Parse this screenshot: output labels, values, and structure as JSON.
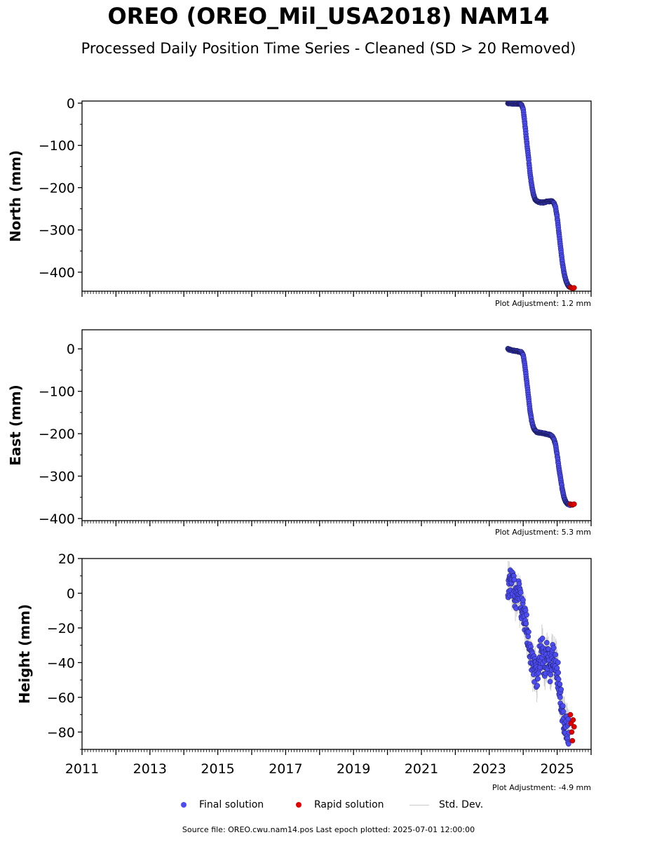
{
  "header": {
    "title": "OREO (OREO_Mil_USA2018) NAM14",
    "subtitle": "Processed Daily Position Time Series - Cleaned (SD > 20 Removed)"
  },
  "legend": {
    "final_label": "Final solution",
    "rapid_label": "Rapid solution",
    "std_label": "Std. Dev."
  },
  "colors": {
    "final": "#4c4cf0",
    "rapid": "#e00000",
    "std": "#cccccc"
  },
  "footer": {
    "source": "Source file: OREO.cwu.nam14.pos  Last epoch plotted: 2025-07-01 12:00:00"
  },
  "chart_data": [
    {
      "type": "scatter",
      "ylabel": "North (mm)",
      "ylim": [
        -445,
        5
      ],
      "yticks": [
        0,
        -100,
        -200,
        -300,
        -400
      ],
      "xlim": [
        2011,
        2026
      ],
      "adjustment": "Plot Adjustment: 1.2 mm",
      "series": [
        {
          "name": "Final solution",
          "x": [
            2023.55,
            2023.6,
            2023.7,
            2023.8,
            2023.9,
            2023.95,
            2024.0,
            2024.05,
            2024.1,
            2024.15,
            2024.2,
            2024.25,
            2024.3,
            2024.35,
            2024.4,
            2024.5,
            2024.6,
            2024.7,
            2024.8,
            2024.85,
            2024.9,
            2024.95,
            2025.0,
            2025.05,
            2025.1,
            2025.15,
            2025.2,
            2025.25,
            2025.3,
            2025.35,
            2025.38
          ],
          "y": [
            0,
            -1,
            -1,
            -1,
            -2,
            -3,
            -15,
            -50,
            -90,
            -125,
            -165,
            -195,
            -215,
            -228,
            -232,
            -235,
            -235,
            -233,
            -232,
            -232,
            -235,
            -245,
            -270,
            -305,
            -340,
            -375,
            -400,
            -418,
            -428,
            -434,
            -436
          ]
        },
        {
          "name": "Rapid solution",
          "x": [
            2025.39,
            2025.42,
            2025.45,
            2025.47,
            2025.5
          ],
          "y": [
            -436,
            -437,
            -438,
            -438,
            -437
          ]
        }
      ]
    },
    {
      "type": "scatter",
      "ylabel": "East (mm)",
      "ylim": [
        -405,
        45
      ],
      "yticks": [
        0,
        -100,
        -200,
        -300,
        -400
      ],
      "xlim": [
        2011,
        2026
      ],
      "adjustment": "Plot Adjustment: 5.3 mm",
      "series": [
        {
          "name": "Final solution",
          "x": [
            2023.55,
            2023.6,
            2023.7,
            2023.8,
            2023.9,
            2023.95,
            2024.0,
            2024.05,
            2024.1,
            2024.15,
            2024.2,
            2024.25,
            2024.3,
            2024.35,
            2024.4,
            2024.5,
            2024.6,
            2024.7,
            2024.8,
            2024.85,
            2024.9,
            2024.95,
            2025.0,
            2025.05,
            2025.1,
            2025.15,
            2025.2,
            2025.25,
            2025.3,
            2025.35,
            2025.38
          ],
          "y": [
            0,
            -2,
            -4,
            -5,
            -7,
            -8,
            -15,
            -40,
            -75,
            -110,
            -145,
            -170,
            -185,
            -193,
            -196,
            -198,
            -199,
            -201,
            -203,
            -206,
            -212,
            -225,
            -250,
            -280,
            -305,
            -330,
            -350,
            -360,
            -365,
            -367,
            -368
          ]
        },
        {
          "name": "Rapid solution",
          "x": [
            2025.39,
            2025.42,
            2025.45,
            2025.47,
            2025.5
          ],
          "y": [
            -366,
            -367,
            -368,
            -367,
            -366
          ]
        }
      ]
    },
    {
      "type": "scatter",
      "ylabel": "Height (mm)",
      "ylim": [
        -90,
        20
      ],
      "yticks": [
        20,
        0,
        -20,
        -40,
        -60,
        -80
      ],
      "xlim": [
        2011,
        2026
      ],
      "xticks": [
        2011,
        2013,
        2015,
        2017,
        2019,
        2021,
        2023,
        2025
      ],
      "adjustment": "Plot Adjustment: -4.9 mm",
      "series": [
        {
          "name": "Final solution",
          "x": [
            2023.55,
            2023.6,
            2023.65,
            2023.7,
            2023.75,
            2023.8,
            2023.85,
            2023.9,
            2023.95,
            2024.0,
            2024.05,
            2024.1,
            2024.15,
            2024.2,
            2024.25,
            2024.3,
            2024.35,
            2024.4,
            2024.45,
            2024.5,
            2024.55,
            2024.6,
            2024.65,
            2024.7,
            2024.75,
            2024.8,
            2024.85,
            2024.9,
            2024.95,
            2025.0,
            2025.05,
            2025.1,
            2025.15,
            2025.2,
            2025.25,
            2025.3,
            2025.35
          ],
          "y": [
            2,
            5,
            8,
            4,
            0,
            -3,
            2,
            -5,
            -8,
            -10,
            -15,
            -20,
            -25,
            -32,
            -38,
            -42,
            -45,
            -48,
            -40,
            -35,
            -30,
            -38,
            -42,
            -35,
            -40,
            -45,
            -38,
            -35,
            -40,
            -45,
            -50,
            -60,
            -68,
            -72,
            -75,
            -78,
            -80
          ]
        },
        {
          "name": "Rapid solution",
          "x": [
            2025.39,
            2025.41,
            2025.43,
            2025.45,
            2025.47,
            2025.5
          ],
          "y": [
            -70,
            -75,
            -80,
            -85,
            -73,
            -77
          ]
        }
      ]
    }
  ]
}
